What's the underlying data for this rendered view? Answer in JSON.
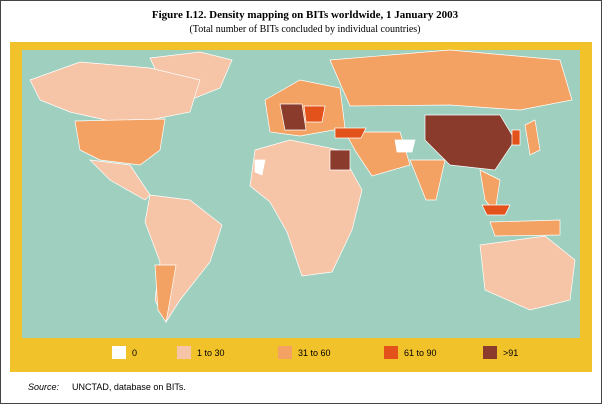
{
  "title": "Figure I.12. Density mapping on BITs worldwide, 1 January 2003",
  "subtitle": "(Total number of BITs concluded by individual countries)",
  "legend": [
    {
      "label": "0",
      "color": "#ffffff"
    },
    {
      "label": "1 to 30",
      "color": "#f6c4a6"
    },
    {
      "label": "31 to 60",
      "color": "#f3a263"
    },
    {
      "label": "61 to 90",
      "color": "#e4521b"
    },
    {
      "label": ">91",
      "color": "#8a3b2c"
    }
  ],
  "source": {
    "label": "Source:",
    "text": "UNCTAD, database on BITs."
  }
}
